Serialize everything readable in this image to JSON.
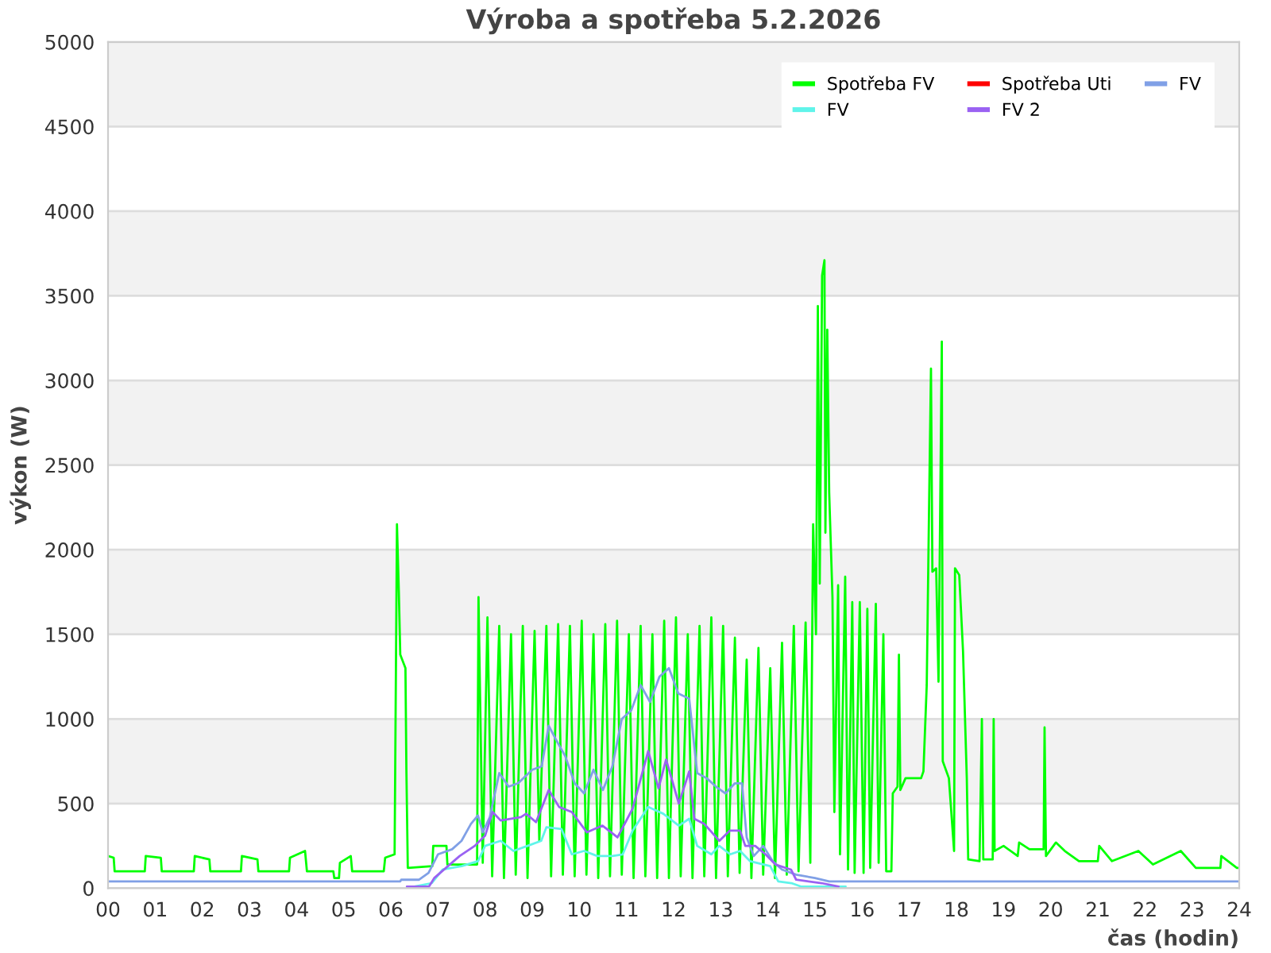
{
  "chart_data": {
    "type": "line",
    "title": "Výroba a spotřeba 5.2.2026",
    "xlabel": "čas (hodin)",
    "ylabel": "výkon (W)",
    "xlim": [
      0,
      24
    ],
    "ylim": [
      0,
      5000
    ],
    "xticks": [
      {
        "value": 0,
        "label": "00"
      },
      {
        "value": 1,
        "label": "01"
      },
      {
        "value": 2,
        "label": "02"
      },
      {
        "value": 3,
        "label": "03"
      },
      {
        "value": 4,
        "label": "04"
      },
      {
        "value": 5,
        "label": "05"
      },
      {
        "value": 6,
        "label": "06"
      },
      {
        "value": 7,
        "label": "07"
      },
      {
        "value": 8,
        "label": "08"
      },
      {
        "value": 9,
        "label": "09"
      },
      10,
      11,
      12,
      13,
      14,
      15,
      16,
      17,
      18,
      19,
      20,
      21,
      22,
      23,
      24
    ],
    "yticks": [
      0,
      500,
      1000,
      1500,
      2000,
      2500,
      3000,
      3500,
      4000,
      4500,
      5000
    ],
    "grid": "y",
    "legend": "top right",
    "bands": [
      {
        "axis": "y",
        "from": 500,
        "to": 1000,
        "color": "#f2f2f2"
      },
      {
        "axis": "y",
        "from": 1500,
        "to": 2000,
        "color": "#f2f2f2"
      },
      {
        "axis": "y",
        "from": 2500,
        "to": 3000,
        "color": "#f2f2f2"
      },
      {
        "axis": "y",
        "from": 3500,
        "to": 4000,
        "color": "#f2f2f2"
      },
      {
        "axis": "y",
        "from": 4500,
        "to": 5000,
        "color": "#f2f2f2"
      }
    ],
    "series": [
      {
        "name": "Spotřeba FV",
        "color": "#00ff00",
        "x": [
          0,
          0.12,
          0.14,
          0.78,
          0.8,
          1.12,
          1.14,
          1.82,
          1.84,
          2.15,
          2.17,
          2.82,
          2.84,
          3.17,
          3.19,
          3.84,
          3.86,
          4.18,
          4.22,
          4.78,
          4.8,
          4.9,
          4.92,
          5.15,
          5.18,
          5.85,
          5.88,
          6.08,
          6.13,
          6.17,
          6.2,
          6.31,
          6.33,
          6.36,
          6.88,
          6.9,
          7.18,
          7.2,
          7.83,
          7.86,
          7.95,
          8.05,
          8.15,
          8.3,
          8.4,
          8.55,
          8.65,
          8.8,
          8.9,
          9.05,
          9.15,
          9.3,
          9.4,
          9.55,
          9.65,
          9.8,
          9.9,
          10.05,
          10.15,
          10.3,
          10.4,
          10.55,
          10.65,
          10.8,
          10.9,
          11.05,
          11.15,
          11.3,
          11.4,
          11.55,
          11.65,
          11.8,
          11.9,
          12.05,
          12.15,
          12.3,
          12.4,
          12.55,
          12.65,
          12.8,
          12.9,
          13.05,
          13.15,
          13.3,
          13.4,
          13.55,
          13.65,
          13.8,
          13.9,
          14.05,
          14.15,
          14.3,
          14.4,
          14.55,
          14.65,
          14.8,
          14.9,
          14.96,
          15.02,
          15.06,
          15.1,
          15.15,
          15.2,
          15.22,
          15.26,
          15.3,
          15.37,
          15.41,
          15.49,
          15.53,
          15.64,
          15.7,
          15.79,
          15.84,
          15.95,
          16.03,
          16.11,
          16.17,
          16.29,
          16.35,
          16.45,
          16.51,
          16.62,
          16.65,
          16.75,
          16.78,
          16.81,
          16.92,
          17.25,
          17.3,
          17.37,
          17.43,
          17.46,
          17.49,
          17.57,
          17.62,
          17.69,
          17.71,
          17.84,
          17.95,
          17.97,
          18.06,
          18.14,
          18.22,
          18.25,
          18.49,
          18.54,
          18.57,
          18.77,
          18.79,
          18.81,
          19.0,
          19.3,
          19.33,
          19.55,
          19.85,
          19.87,
          19.9,
          20.11,
          20.3,
          20.6,
          21.0,
          21.03,
          21.3,
          21.86,
          22.17,
          22.76,
          23.08,
          23.6,
          23.62,
          23.95,
          24
        ],
        "values": [
          190,
          180,
          100,
          100,
          190,
          180,
          100,
          100,
          190,
          170,
          100,
          100,
          190,
          170,
          100,
          100,
          180,
          220,
          100,
          100,
          60,
          60,
          150,
          190,
          100,
          100,
          180,
          200,
          2150,
          1750,
          1380,
          1300,
          700,
          120,
          130,
          250,
          250,
          140,
          140,
          1720,
          150,
          1600,
          70,
          1550,
          60,
          1500,
          80,
          1550,
          60,
          1520,
          280,
          1550,
          70,
          1560,
          80,
          1550,
          70,
          1580,
          80,
          1500,
          60,
          1560,
          70,
          1580,
          80,
          1500,
          60,
          1550,
          70,
          1500,
          60,
          1580,
          60,
          1600,
          70,
          1500,
          60,
          1550,
          70,
          1600,
          60,
          1550,
          70,
          1480,
          90,
          1350,
          60,
          1420,
          80,
          1300,
          60,
          1450,
          80,
          1550,
          100,
          1570,
          150,
          2150,
          1500,
          3440,
          1800,
          3620,
          3710,
          2100,
          3300,
          2340,
          1720,
          450,
          1790,
          200,
          1840,
          110,
          1690,
          90,
          1690,
          90,
          1650,
          120,
          1680,
          150,
          1500,
          100,
          100,
          560,
          600,
          1380,
          580,
          650,
          650,
          690,
          1200,
          2470,
          3070,
          1870,
          1890,
          1220,
          3230,
          750,
          650,
          220,
          1890,
          1850,
          1400,
          650,
          170,
          160,
          1000,
          170,
          170,
          1000,
          220,
          250,
          190,
          270,
          230,
          230,
          950,
          190,
          270,
          220,
          160,
          160,
          250,
          160,
          220,
          140,
          220,
          120,
          120,
          190,
          120,
          120
        ]
      },
      {
        "name": "Spotřeba Uti",
        "color": "#ff0000"
      },
      {
        "name": "FV",
        "color": "#80a0e6",
        "x": [
          0,
          6.2,
          6.22,
          6.6,
          6.8,
          7.0,
          7.3,
          7.5,
          7.7,
          7.85,
          7.95,
          8.1,
          8.3,
          8.5,
          8.7,
          9.0,
          9.2,
          9.35,
          9.5,
          9.7,
          9.9,
          10.1,
          10.3,
          10.5,
          10.7,
          10.9,
          11.1,
          11.3,
          11.5,
          11.7,
          11.9,
          12.1,
          12.33,
          12.5,
          12.7,
          12.9,
          13.1,
          13.3,
          13.45,
          13.55,
          13.7,
          13.9,
          14.1,
          14.3,
          14.6,
          15.0,
          15.3,
          15.6,
          24
        ],
        "values": [
          40,
          40,
          50,
          50,
          90,
          200,
          230,
          280,
          380,
          430,
          330,
          420,
          680,
          600,
          620,
          700,
          720,
          960,
          880,
          780,
          620,
          560,
          700,
          580,
          720,
          1000,
          1050,
          1200,
          1100,
          1250,
          1300,
          1150,
          1120,
          680,
          650,
          600,
          560,
          620,
          620,
          300,
          190,
          250,
          160,
          110,
          80,
          60,
          40,
          40,
          40
        ]
      },
      {
        "name": "FV",
        "color": "#60f4ea",
        "x": [
          6.5,
          6.87,
          7.1,
          7.5,
          7.85,
          8.0,
          8.33,
          8.6,
          8.9,
          9.19,
          9.3,
          9.62,
          9.84,
          10.1,
          10.38,
          10.7,
          10.92,
          11.13,
          11.46,
          11.78,
          12.11,
          12.33,
          12.5,
          12.8,
          12.97,
          13.2,
          13.41,
          13.62,
          14.05,
          14.22,
          14.5,
          14.7,
          15.65
        ],
        "values": [
          10,
          30,
          110,
          130,
          160,
          250,
          280,
          220,
          250,
          280,
          360,
          350,
          200,
          220,
          190,
          190,
          200,
          340,
          480,
          440,
          370,
          410,
          250,
          200,
          250,
          200,
          220,
          160,
          130,
          40,
          30,
          10,
          10
        ]
      },
      {
        "name": "FV 2",
        "color": "#9a62f2",
        "x": [
          6.34,
          6.81,
          6.92,
          7.46,
          7.78,
          8.0,
          8.16,
          8.33,
          8.76,
          8.87,
          9.08,
          9.35,
          9.57,
          9.84,
          10.16,
          10.49,
          10.81,
          11.13,
          11.46,
          11.68,
          11.84,
          12.11,
          12.33,
          12.44,
          12.65,
          12.97,
          13.19,
          13.41,
          13.52,
          13.73,
          13.95,
          14.16,
          14.49,
          14.6,
          15.14,
          15.5
        ],
        "values": [
          10,
          10,
          60,
          190,
          250,
          310,
          450,
          400,
          420,
          440,
          390,
          580,
          480,
          450,
          330,
          370,
          300,
          470,
          810,
          590,
          760,
          500,
          690,
          410,
          380,
          280,
          340,
          340,
          250,
          250,
          200,
          140,
          110,
          50,
          30,
          10
        ]
      }
    ]
  }
}
